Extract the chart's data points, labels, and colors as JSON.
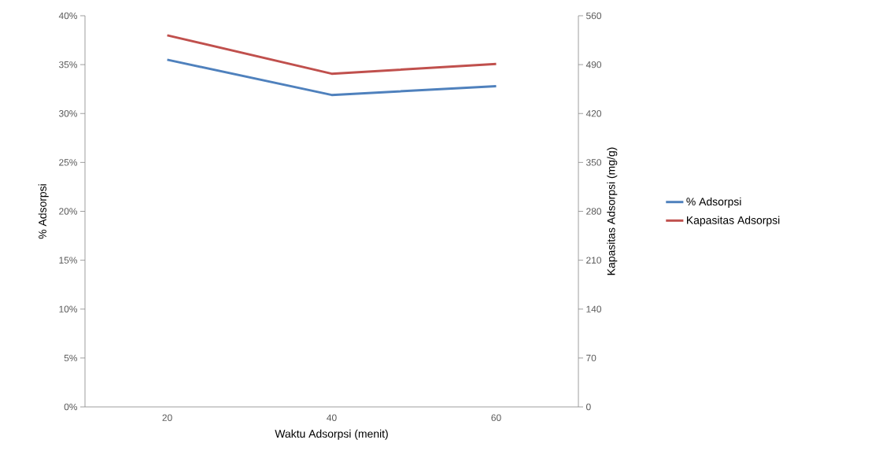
{
  "chart_data": {
    "type": "line",
    "xlabel": "Waktu Adsorpsi (menit)",
    "ylabel": "% Adsorpsi",
    "y2label": "Kapasitas Adsorpsi (mg/g)",
    "categories": [
      "20",
      "40",
      "60"
    ],
    "series": [
      {
        "name": "% Adsorpsi",
        "color": "#4f81bd",
        "values": [
          35.5,
          31.9,
          32.8
        ]
      },
      {
        "name": "Kapasitas Adsorpsi",
        "color": "#c0504d",
        "values": [
          532,
          477,
          491
        ],
        "axis": "y2"
      }
    ],
    "ylim": [
      0,
      40
    ],
    "yticks": [
      {
        "value": 0,
        "label": "0%"
      },
      {
        "value": 5,
        "label": "5%"
      },
      {
        "value": 10,
        "label": "10%"
      },
      {
        "value": 15,
        "label": "15%"
      },
      {
        "value": 20,
        "label": "20%"
      },
      {
        "value": 25,
        "label": "25%"
      },
      {
        "value": 30,
        "label": "30%"
      },
      {
        "value": 35,
        "label": "35%"
      },
      {
        "value": 40,
        "label": "40%"
      }
    ],
    "y2lim": [
      0,
      560
    ],
    "y2ticks": [
      0,
      70,
      140,
      210,
      280,
      350,
      420,
      490,
      560
    ],
    "legend": "right",
    "marker": "none",
    "line_style": "solid"
  }
}
